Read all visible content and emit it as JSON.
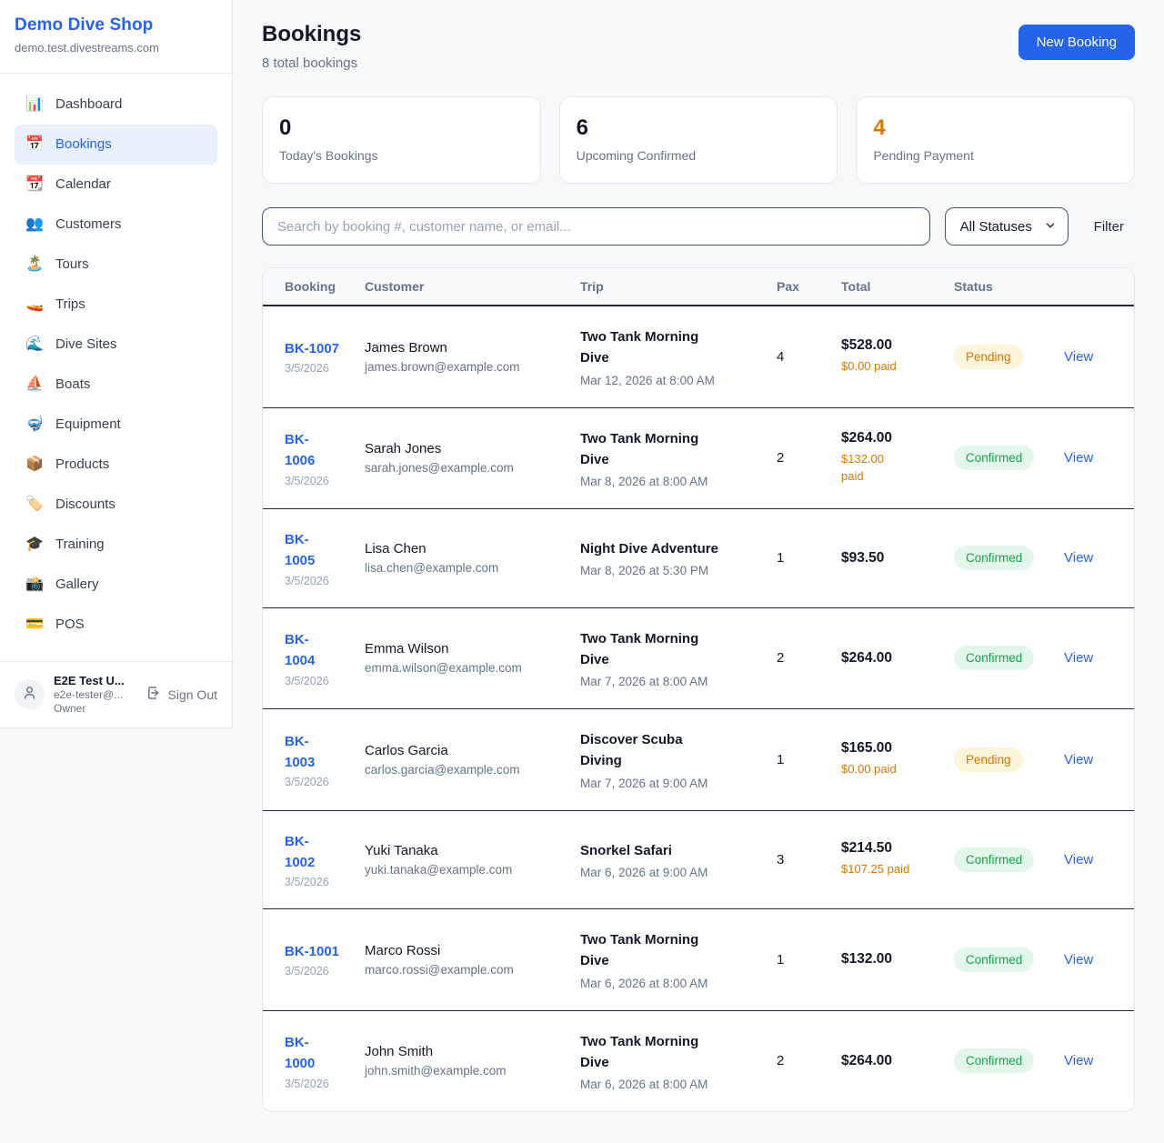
{
  "colors": {
    "accent": "#2563eb",
    "pending": "#d97706",
    "confirmed": "#16a34a"
  },
  "sidebar": {
    "brand": {
      "name": "Demo Dive Shop",
      "domain": "demo.test.divestreams.com"
    },
    "nav": [
      {
        "icon": "📊",
        "label": "Dashboard",
        "active": false
      },
      {
        "icon": "📅",
        "label": "Bookings",
        "active": true
      },
      {
        "icon": "📆",
        "label": "Calendar",
        "active": false
      },
      {
        "icon": "👥",
        "label": "Customers",
        "active": false
      },
      {
        "icon": "🏝️",
        "label": "Tours",
        "active": false
      },
      {
        "icon": "🚤",
        "label": "Trips",
        "active": false
      },
      {
        "icon": "🌊",
        "label": "Dive Sites",
        "active": false
      },
      {
        "icon": "⛵",
        "label": "Boats",
        "active": false
      },
      {
        "icon": "🤿",
        "label": "Equipment",
        "active": false
      },
      {
        "icon": "📦",
        "label": "Products",
        "active": false
      },
      {
        "icon": "🏷️",
        "label": "Discounts",
        "active": false
      },
      {
        "icon": "🎓",
        "label": "Training",
        "active": false
      },
      {
        "icon": "📸",
        "label": "Gallery",
        "active": false
      },
      {
        "icon": "💳",
        "label": "POS",
        "active": false
      }
    ],
    "user": {
      "name": "E2E Test U...",
      "email": "e2e-tester@...",
      "role": "Owner",
      "sign_out_label": "Sign Out"
    }
  },
  "header": {
    "title": "Bookings",
    "subtitle": "8 total bookings",
    "new_booking_label": "New Booking"
  },
  "stats": [
    {
      "value": "0",
      "label": "Today's Bookings",
      "highlight": false
    },
    {
      "value": "6",
      "label": "Upcoming Confirmed",
      "highlight": false
    },
    {
      "value": "4",
      "label": "Pending Payment",
      "highlight": true
    }
  ],
  "filters": {
    "search_placeholder": "Search by booking #, customer name, or email...",
    "status_selected": "All Statuses",
    "filter_label": "Filter"
  },
  "table": {
    "columns": {
      "booking": "Booking",
      "customer": "Customer",
      "trip": "Trip",
      "pax": "Pax",
      "total": "Total",
      "status": "Status"
    },
    "view_label": "View",
    "rows": [
      {
        "number": "BK-1007",
        "date": "3/5/2026",
        "customer_name": "James Brown",
        "customer_email": "james.brown@example.com",
        "trip_name": "Two Tank Morning\nDive",
        "trip_datetime": "Mar 12, 2026 at 8:00 AM",
        "pax": "4",
        "total": "$528.00",
        "paid": "$0.00 paid",
        "status": "Pending"
      },
      {
        "number": "BK-\n1006",
        "date": "3/5/2026",
        "customer_name": "Sarah Jones",
        "customer_email": "sarah.jones@example.com",
        "trip_name": "Two Tank Morning\nDive",
        "trip_datetime": "Mar 8, 2026 at 8:00 AM",
        "pax": "2",
        "total": "$264.00",
        "paid": "$132.00\npaid",
        "status": "Confirmed"
      },
      {
        "number": "BK-\n1005",
        "date": "3/5/2026",
        "customer_name": "Lisa Chen",
        "customer_email": "lisa.chen@example.com",
        "trip_name": "Night Dive Adventure",
        "trip_datetime": "Mar 8, 2026 at 5:30 PM",
        "pax": "1",
        "total": "$93.50",
        "paid": "",
        "status": "Confirmed"
      },
      {
        "number": "BK-\n1004",
        "date": "3/5/2026",
        "customer_name": "Emma Wilson",
        "customer_email": "emma.wilson@example.com",
        "trip_name": "Two Tank Morning\nDive",
        "trip_datetime": "Mar 7, 2026 at 8:00 AM",
        "pax": "2",
        "total": "$264.00",
        "paid": "",
        "status": "Confirmed"
      },
      {
        "number": "BK-\n1003",
        "date": "3/5/2026",
        "customer_name": "Carlos Garcia",
        "customer_email": "carlos.garcia@example.com",
        "trip_name": "Discover Scuba\nDiving",
        "trip_datetime": "Mar 7, 2026 at 9:00 AM",
        "pax": "1",
        "total": "$165.00",
        "paid": "$0.00 paid",
        "status": "Pending"
      },
      {
        "number": "BK-\n1002",
        "date": "3/5/2026",
        "customer_name": "Yuki Tanaka",
        "customer_email": "yuki.tanaka@example.com",
        "trip_name": "Snorkel Safari",
        "trip_datetime": "Mar 6, 2026 at 9:00 AM",
        "pax": "3",
        "total": "$214.50",
        "paid": "$107.25 paid",
        "status": "Confirmed"
      },
      {
        "number": "BK-1001",
        "date": "3/5/2026",
        "customer_name": "Marco Rossi",
        "customer_email": "marco.rossi@example.com",
        "trip_name": "Two Tank Morning\nDive",
        "trip_datetime": "Mar 6, 2026 at 8:00 AM",
        "pax": "1",
        "total": "$132.00",
        "paid": "",
        "status": "Confirmed"
      },
      {
        "number": "BK-\n1000",
        "date": "3/5/2026",
        "customer_name": "John Smith",
        "customer_email": "john.smith@example.com",
        "trip_name": "Two Tank Morning\nDive",
        "trip_datetime": "Mar 6, 2026 at 8:00 AM",
        "pax": "2",
        "total": "$264.00",
        "paid": "",
        "status": "Confirmed"
      }
    ]
  }
}
